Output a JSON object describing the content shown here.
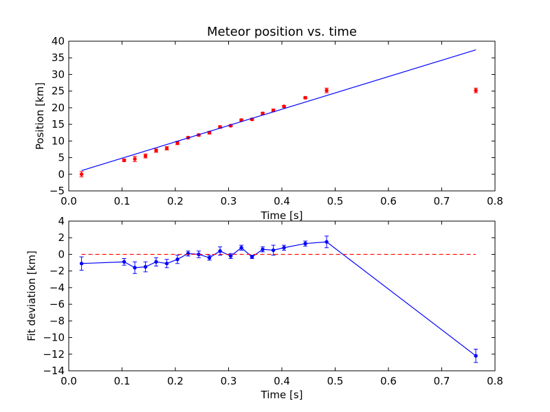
{
  "chart_data": [
    {
      "type": "scatter",
      "title": "Meteor position vs. time",
      "xlabel": "Time [s]",
      "ylabel": "Position [km]",
      "xlim": [
        0.0,
        0.8
      ],
      "ylim": [
        -5,
        40
      ],
      "xticks": [
        0.0,
        0.1,
        0.2,
        0.3,
        0.4,
        0.5,
        0.6,
        0.7,
        0.8
      ],
      "xtick_labels": [
        "0.0",
        "0.1",
        "0.2",
        "0.3",
        "0.4",
        "0.5",
        "0.6",
        "0.7",
        "0.8"
      ],
      "yticks": [
        -5,
        0,
        5,
        10,
        15,
        20,
        25,
        30,
        35,
        40
      ],
      "ytick_labels": [
        "−5",
        "0",
        "5",
        "10",
        "15",
        "20",
        "25",
        "30",
        "35",
        "40"
      ],
      "grid": false,
      "series": [
        {
          "kind": "errorbar-points",
          "color": "#ff0000",
          "x": [
            0.024,
            0.104,
            0.124,
            0.144,
            0.164,
            0.184,
            0.204,
            0.224,
            0.244,
            0.264,
            0.284,
            0.304,
            0.324,
            0.344,
            0.364,
            0.384,
            0.404,
            0.444,
            0.484,
            0.764
          ],
          "y": [
            0.0,
            4.2,
            4.6,
            5.5,
            7.1,
            7.8,
            9.4,
            11.0,
            11.8,
            12.5,
            14.2,
            14.6,
            16.3,
            16.5,
            18.3,
            19.2,
            20.4,
            23.0,
            25.2,
            25.2
          ],
          "yerr": [
            0.8,
            0.4,
            0.8,
            0.6,
            0.5,
            0.5,
            0.5,
            0.3,
            0.3,
            0.4,
            0.4,
            0.3,
            0.3,
            0.3,
            0.3,
            0.4,
            0.3,
            0.3,
            0.7,
            0.7
          ]
        },
        {
          "kind": "line",
          "color": "#0000ff",
          "x": [
            0.024,
            0.764
          ],
          "y": [
            1.1,
            37.4
          ]
        }
      ]
    },
    {
      "type": "line",
      "title": "",
      "xlabel": "Time [s]",
      "ylabel": "Fit deviation [km]",
      "xlim": [
        0.0,
        0.8
      ],
      "ylim": [
        -14,
        4
      ],
      "xticks": [
        0.0,
        0.1,
        0.2,
        0.3,
        0.4,
        0.5,
        0.6,
        0.7,
        0.8
      ],
      "xtick_labels": [
        "0.0",
        "0.1",
        "0.2",
        "0.3",
        "0.4",
        "0.5",
        "0.6",
        "0.7",
        "0.8"
      ],
      "yticks": [
        -14,
        -12,
        -10,
        -8,
        -6,
        -4,
        -2,
        0,
        2,
        4
      ],
      "ytick_labels": [
        "−14",
        "−12",
        "−10",
        "−8",
        "−6",
        "−4",
        "−2",
        "0",
        "2",
        "4"
      ],
      "grid": false,
      "series": [
        {
          "kind": "errorbar-line",
          "color": "#0000ff",
          "x": [
            0.024,
            0.104,
            0.124,
            0.144,
            0.164,
            0.184,
            0.204,
            0.224,
            0.244,
            0.264,
            0.284,
            0.304,
            0.324,
            0.344,
            0.364,
            0.384,
            0.404,
            0.444,
            0.484,
            0.764
          ],
          "y": [
            -1.1,
            -0.9,
            -1.6,
            -1.5,
            -0.9,
            -1.1,
            -0.6,
            0.1,
            0.0,
            -0.4,
            0.4,
            -0.2,
            0.8,
            -0.3,
            0.6,
            0.5,
            0.8,
            1.3,
            1.5,
            -12.2
          ],
          "yerr": [
            0.8,
            0.4,
            0.7,
            0.6,
            0.5,
            0.5,
            0.5,
            0.3,
            0.4,
            0.3,
            0.5,
            0.3,
            0.3,
            0.2,
            0.3,
            0.6,
            0.3,
            0.3,
            0.7,
            0.8
          ]
        },
        {
          "kind": "dashed-line",
          "color": "#ff0000",
          "x": [
            0.024,
            0.764
          ],
          "y": [
            0,
            0
          ]
        }
      ]
    }
  ]
}
